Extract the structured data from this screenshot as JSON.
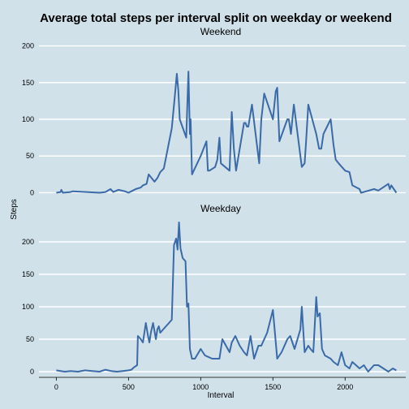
{
  "chart_data": {
    "type": "line",
    "title": "Average total steps per interval split on weekday or weekend",
    "xlabel": "Interval",
    "ylabel": "Steps",
    "x_ticks": [
      0,
      500,
      1000,
      1500,
      2000
    ],
    "y_ticks": [
      0,
      50,
      100,
      150,
      200
    ],
    "xlim": [
      -120,
      2420
    ],
    "colors": {
      "line": "#3a6aa8",
      "background": "#d0e1e9",
      "grid": "#ffffff"
    },
    "grid": true,
    "panels": [
      {
        "strip_label": "Weekend",
        "ylim": [
          -5,
          205
        ],
        "x": [
          0,
          30,
          35,
          45,
          100,
          115,
          300,
          340,
          375,
          395,
          430,
          475,
          500,
          530,
          550,
          585,
          600,
          625,
          640,
          680,
          700,
          720,
          745,
          800,
          820,
          835,
          845,
          855,
          900,
          915,
          925,
          930,
          940,
          1000,
          1040,
          1050,
          1060,
          1100,
          1115,
          1130,
          1140,
          1200,
          1215,
          1230,
          1245,
          1300,
          1310,
          1320,
          1330,
          1355,
          1405,
          1420,
          1440,
          1500,
          1520,
          1530,
          1545,
          1600,
          1610,
          1625,
          1645,
          1700,
          1720,
          1730,
          1745,
          1800,
          1820,
          1835,
          1850,
          1900,
          1920,
          1935,
          1955,
          2000,
          2030,
          2050,
          2100,
          2110,
          2130,
          2200,
          2230,
          2300,
          2310,
          2320,
          2355
        ],
        "y": [
          0,
          1,
          4,
          0,
          1,
          2,
          0,
          1,
          5,
          1,
          4,
          2,
          0,
          3,
          5,
          7,
          10,
          12,
          25,
          15,
          20,
          28,
          33,
          88,
          130,
          162,
          140,
          100,
          75,
          165,
          80,
          100,
          25,
          50,
          70,
          30,
          30,
          35,
          45,
          75,
          40,
          30,
          110,
          60,
          30,
          95,
          95,
          90,
          90,
          120,
          40,
          100,
          135,
          100,
          138,
          143,
          70,
          100,
          100,
          80,
          120,
          35,
          40,
          70,
          120,
          80,
          60,
          60,
          80,
          100,
          65,
          45,
          40,
          30,
          28,
          10,
          5,
          0,
          1,
          5,
          3,
          12,
          5,
          10,
          0
        ]
      },
      {
        "strip_label": "Weekday",
        "ylim": [
          -5,
          235
        ],
        "x": [
          0,
          30,
          60,
          100,
          150,
          200,
          250,
          300,
          340,
          380,
          420,
          460,
          500,
          520,
          540,
          560,
          565,
          585,
          600,
          620,
          635,
          645,
          655,
          670,
          690,
          700,
          710,
          720,
          740,
          780,
          800,
          815,
          830,
          840,
          850,
          860,
          875,
          895,
          905,
          915,
          925,
          940,
          960,
          1000,
          1030,
          1080,
          1100,
          1130,
          1150,
          1200,
          1215,
          1240,
          1270,
          1300,
          1320,
          1345,
          1370,
          1400,
          1420,
          1460,
          1500,
          1530,
          1545,
          1560,
          1600,
          1620,
          1650,
          1690,
          1700,
          1720,
          1745,
          1760,
          1780,
          1800,
          1810,
          1825,
          1840,
          1860,
          1900,
          1920,
          1950,
          1975,
          2000,
          2030,
          2050,
          2100,
          2130,
          2160,
          2200,
          2230,
          2300,
          2330,
          2355
        ],
        "y": [
          2,
          1,
          0,
          1,
          0,
          2,
          1,
          0,
          3,
          1,
          0,
          1,
          2,
          3,
          7,
          10,
          55,
          50,
          45,
          75,
          55,
          45,
          60,
          75,
          50,
          65,
          70,
          60,
          65,
          75,
          80,
          195,
          205,
          188,
          230,
          190,
          175,
          170,
          100,
          105,
          35,
          20,
          20,
          35,
          25,
          20,
          20,
          20,
          50,
          30,
          45,
          55,
          40,
          30,
          25,
          55,
          20,
          40,
          40,
          60,
          95,
          20,
          25,
          30,
          50,
          55,
          35,
          65,
          100,
          30,
          40,
          35,
          30,
          115,
          85,
          90,
          35,
          25,
          20,
          15,
          10,
          30,
          10,
          5,
          15,
          5,
          10,
          0,
          10,
          10,
          0,
          5,
          2
        ]
      }
    ]
  }
}
